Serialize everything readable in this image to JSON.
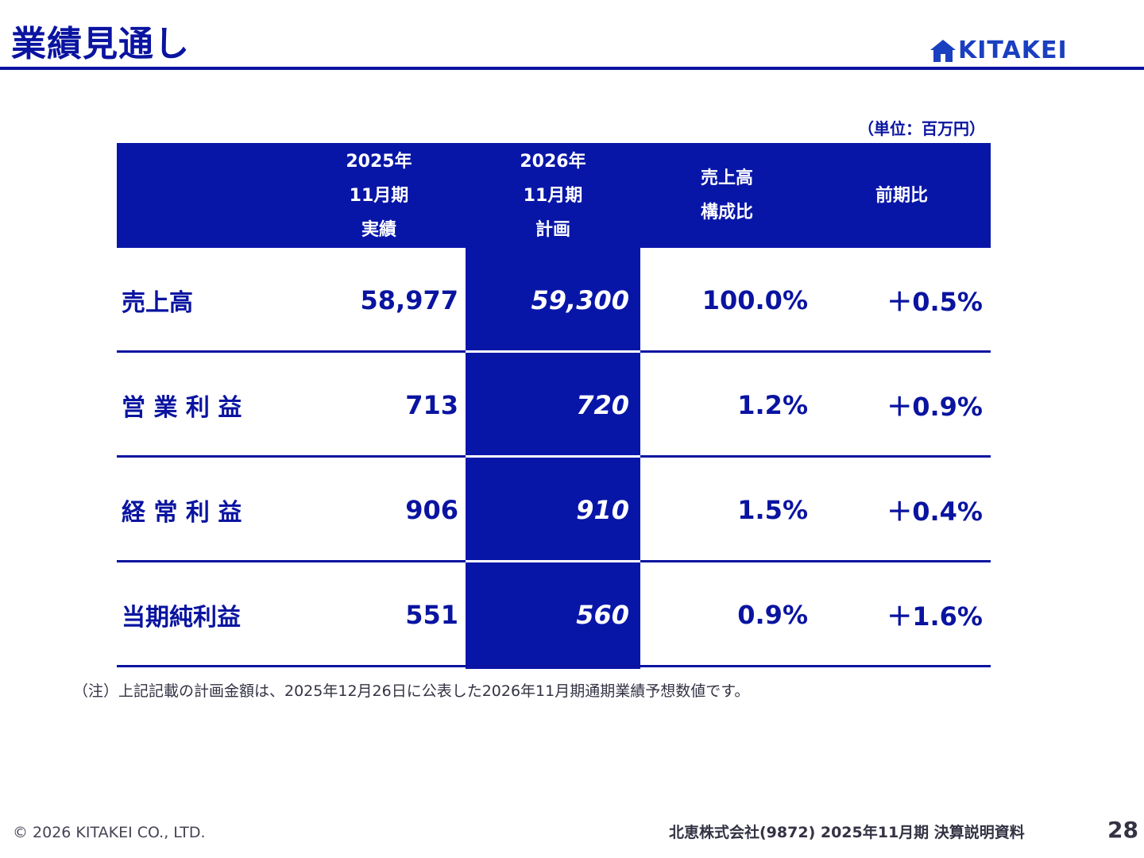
{
  "header": {
    "title": "業績見通し",
    "logo_text": "KITAKEI",
    "logo_icon": "house-icon"
  },
  "unit": "（単位：百万円）",
  "table": {
    "columns": [
      "",
      "2025年\n11月期\n実績",
      "2026年\n11月期\n計画",
      "売上高\n構成比",
      "前期比"
    ],
    "rows": [
      {
        "label": "売上高",
        "actual": "58,977",
        "plan": "59,300",
        "ratio": "100.0%",
        "yoy": "＋0.5%"
      },
      {
        "label": "営 業 利 益",
        "actual": "713",
        "plan": "720",
        "ratio": "1.2%",
        "yoy": "＋0.9%"
      },
      {
        "label": "経 常 利 益",
        "actual": "906",
        "plan": "910",
        "ratio": "1.5%",
        "yoy": "＋0.4%"
      },
      {
        "label": "当期純利益",
        "actual": "551",
        "plan": "560",
        "ratio": "0.9%",
        "yoy": "＋1.6%"
      }
    ]
  },
  "note": "（注）上記記載の計画金額は、2025年12月26日に公表した2026年11月期通期業績予想数値です。",
  "footer": {
    "copyright": "© 2026 KITAKEI CO., LTD.",
    "document": "北恵株式会社(9872) 2025年11月期 決算説明資料",
    "page": "28"
  },
  "colors": {
    "brand_navy": "#0a14a0",
    "header_fill": "#0816a8",
    "logo_blue": "#1a3fc0"
  }
}
